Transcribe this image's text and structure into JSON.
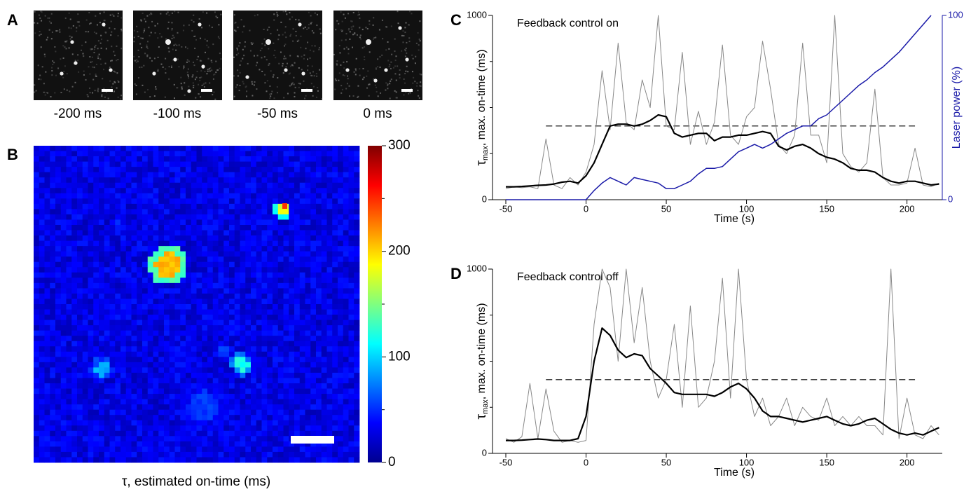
{
  "panel_a": {
    "label": "A",
    "frames": [
      "-200 ms",
      "-100 ms",
      "-50 ms",
      "0 ms"
    ]
  },
  "panel_b": {
    "label": "B",
    "colorbar": {
      "lim": [
        0,
        300
      ],
      "ticks": [
        0,
        100,
        200,
        300
      ],
      "minor": [
        50,
        150,
        250
      ],
      "label": "τ, estimated on-time (ms)"
    }
  },
  "chart_data": [
    {
      "type": "line",
      "panel": "C",
      "annotation": "Feedback control on",
      "ylabel_symbol": "τ",
      "ylabel_subscript": "max",
      "ylabel": ", max. on-time (ms)",
      "xlabel": "Time (s)",
      "y2label": "Laser power (%)",
      "xlim": [
        -50,
        222
      ],
      "xticks": [
        -50,
        0,
        50,
        100,
        150,
        200
      ],
      "ylim": [
        0,
        1000
      ],
      "yticks": [
        0,
        1000
      ],
      "yminor": [
        250,
        500,
        750
      ],
      "y2lim": [
        0,
        100
      ],
      "y2ticks": [
        0,
        100
      ],
      "y2color": "#1a1aa8",
      "x": [
        -50,
        -45,
        -40,
        -35,
        -30,
        -25,
        -20,
        -15,
        -10,
        -5,
        0,
        5,
        10,
        15,
        20,
        25,
        30,
        35,
        40,
        45,
        50,
        55,
        60,
        65,
        70,
        75,
        80,
        85,
        90,
        95,
        100,
        105,
        110,
        115,
        120,
        125,
        130,
        135,
        140,
        145,
        150,
        155,
        160,
        165,
        170,
        175,
        180,
        185,
        190,
        195,
        200,
        205,
        210,
        215,
        220
      ],
      "series": [
        {
          "color": "#888888",
          "line_width": 1,
          "values": [
            60,
            70,
            65,
            70,
            60,
            330,
            80,
            60,
            120,
            80,
            150,
            300,
            700,
            380,
            850,
            420,
            380,
            650,
            500,
            1000,
            400,
            380,
            800,
            300,
            480,
            300,
            420,
            840,
            350,
            300,
            450,
            500,
            860,
            600,
            300,
            250,
            350,
            850,
            350,
            350,
            200,
            1000,
            250,
            180,
            150,
            200,
            600,
            120,
            80,
            80,
            90,
            280,
            80,
            70,
            90
          ]
        },
        {
          "color": "#000000",
          "line_width": 2.2,
          "values": [
            70,
            70,
            72,
            75,
            78,
            80,
            85,
            95,
            100,
            90,
            130,
            200,
            300,
            400,
            410,
            410,
            400,
            410,
            430,
            460,
            450,
            360,
            340,
            350,
            360,
            360,
            320,
            340,
            340,
            350,
            350,
            360,
            370,
            360,
            290,
            270,
            290,
            300,
            280,
            250,
            230,
            220,
            200,
            170,
            160,
            160,
            150,
            120,
            100,
            90,
            100,
            100,
            90,
            80,
            85
          ]
        },
        {
          "color": "#1a1aa8",
          "line_width": 1.5,
          "axis": "y2",
          "values": [
            0,
            0,
            0,
            0,
            0,
            0,
            0,
            0,
            0,
            0,
            0,
            5,
            9,
            12,
            10,
            8,
            12,
            11,
            10,
            9,
            6,
            6,
            8,
            10,
            14,
            17,
            17,
            18,
            22,
            26,
            28,
            30,
            28,
            30,
            33,
            36,
            38,
            40,
            40,
            44,
            46,
            50,
            54,
            58,
            62,
            65,
            69,
            72,
            76,
            80,
            85,
            90,
            95,
            100,
            null
          ]
        }
      ],
      "reference_lines": [
        {
          "y": 400,
          "x": [
            -25,
            205
          ]
        }
      ]
    },
    {
      "type": "line",
      "panel": "D",
      "annotation": "Feedback control off",
      "ylabel_symbol": "τ",
      "ylabel_subscript": "max",
      "ylabel": ", max. on-time (ms)",
      "xlabel": "Time (s)",
      "xlim": [
        -50,
        222
      ],
      "xticks": [
        -50,
        0,
        50,
        100,
        150,
        200
      ],
      "ylim": [
        0,
        1000
      ],
      "yticks": [
        0,
        1000
      ],
      "yminor": [
        250,
        500,
        750
      ],
      "x": [
        -50,
        -45,
        -40,
        -35,
        -30,
        -25,
        -20,
        -15,
        -10,
        -5,
        0,
        5,
        10,
        15,
        20,
        25,
        30,
        35,
        40,
        45,
        50,
        55,
        60,
        65,
        70,
        75,
        80,
        85,
        90,
        95,
        100,
        105,
        110,
        115,
        120,
        125,
        130,
        135,
        140,
        145,
        150,
        155,
        160,
        165,
        170,
        175,
        180,
        185,
        190,
        195,
        200,
        205,
        210,
        215,
        220
      ],
      "series": [
        {
          "color": "#888888",
          "line_width": 1,
          "values": [
            80,
            60,
            90,
            380,
            80,
            350,
            120,
            60,
            70,
            60,
            70,
            700,
            1000,
            900,
            500,
            1000,
            600,
            900,
            500,
            300,
            400,
            700,
            250,
            800,
            250,
            300,
            500,
            950,
            300,
            1000,
            400,
            200,
            300,
            150,
            200,
            300,
            150,
            250,
            200,
            180,
            300,
            150,
            200,
            150,
            200,
            150,
            150,
            100,
            1000,
            80,
            300,
            100,
            80,
            150,
            100
          ]
        },
        {
          "color": "#000000",
          "line_width": 2.2,
          "values": [
            70,
            70,
            72,
            75,
            78,
            75,
            70,
            70,
            70,
            80,
            200,
            500,
            680,
            640,
            560,
            520,
            540,
            530,
            460,
            420,
            380,
            330,
            320,
            320,
            320,
            320,
            310,
            330,
            360,
            380,
            350,
            300,
            230,
            200,
            200,
            190,
            180,
            170,
            180,
            190,
            200,
            180,
            160,
            150,
            160,
            180,
            190,
            160,
            130,
            110,
            100,
            110,
            100,
            120,
            140
          ]
        }
      ],
      "reference_lines": [
        {
          "y": 400,
          "x": [
            -25,
            205
          ]
        }
      ]
    }
  ]
}
